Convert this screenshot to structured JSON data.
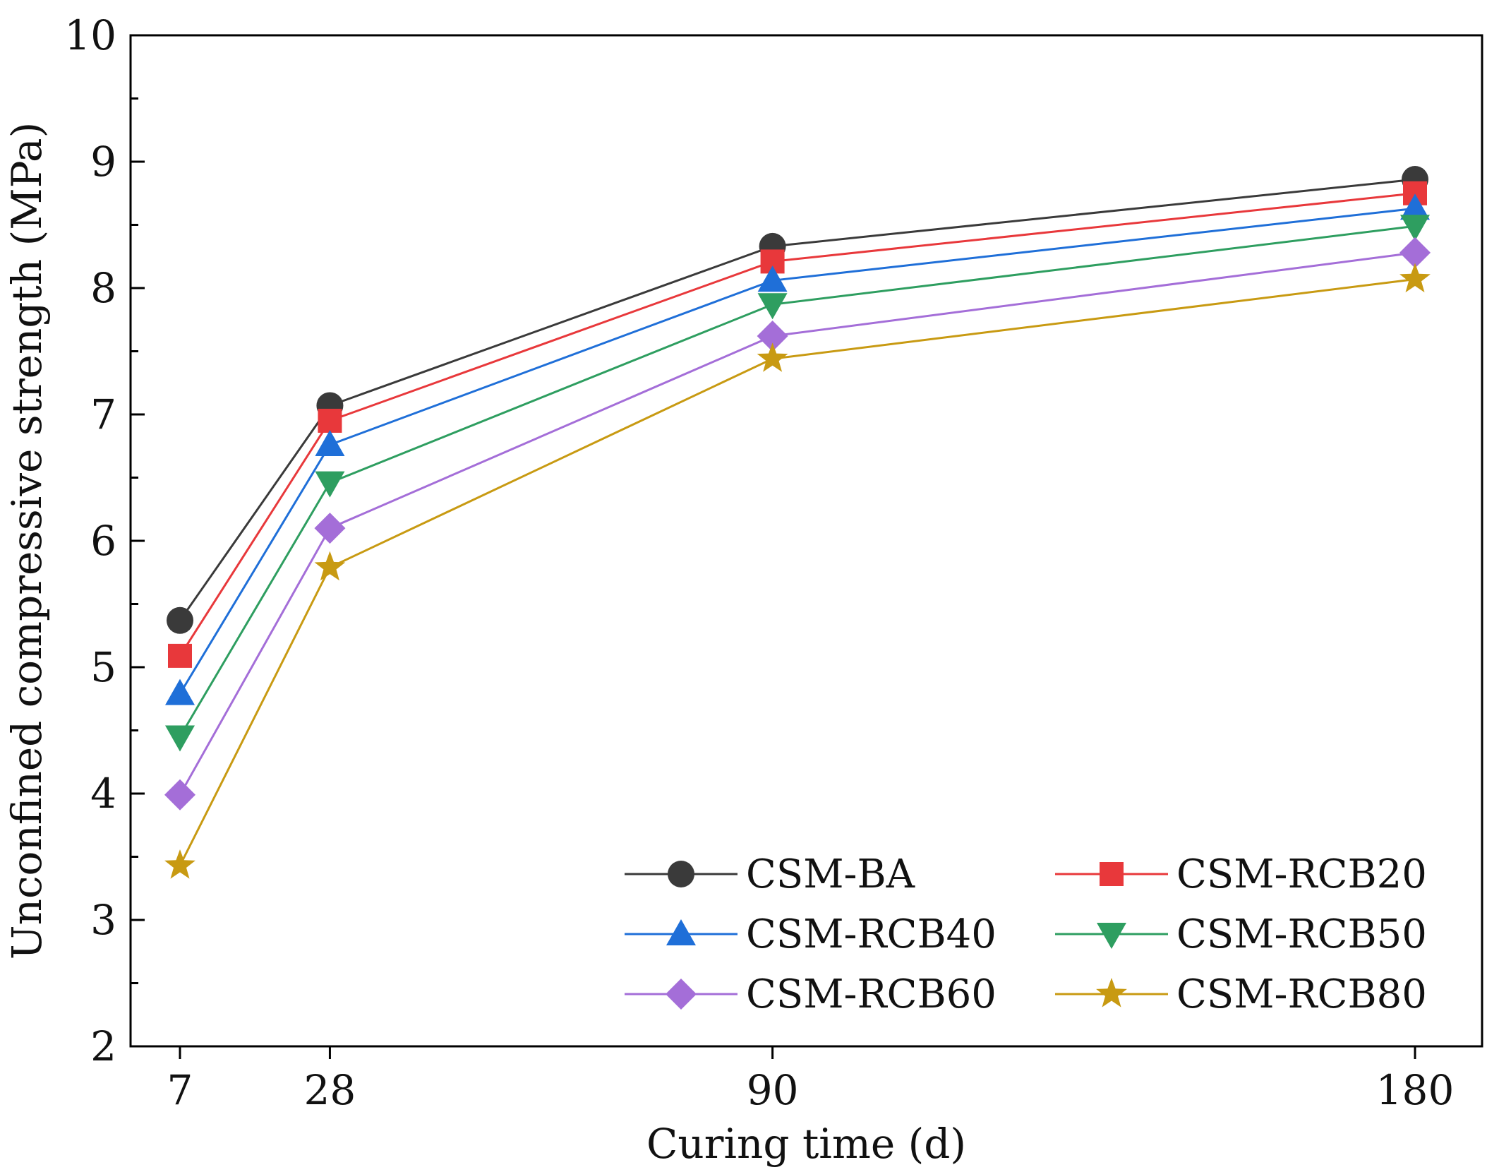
{
  "chart_data": {
    "type": "line",
    "title": "",
    "xlabel": "Curing time (d)",
    "ylabel": "Unconfined compressive strength (MPa)",
    "x": [
      7,
      28,
      90,
      180
    ],
    "x_ticks": [
      "7",
      "28",
      "90",
      "180"
    ],
    "xlim": [
      0,
      190
    ],
    "ylim": [
      2,
      10
    ],
    "y_ticks": [
      "2",
      "3",
      "4",
      "5",
      "6",
      "7",
      "8",
      "9",
      "10"
    ],
    "grid": false,
    "legend_position": "bottom-right",
    "series": [
      {
        "name": "CSM-BA",
        "marker": "circle",
        "color": "#3a3a3a",
        "values": [
          5.37,
          7.07,
          8.33,
          8.86
        ]
      },
      {
        "name": "CSM-RCB20",
        "marker": "square",
        "color": "#e8383b",
        "values": [
          5.09,
          6.95,
          8.21,
          8.75
        ]
      },
      {
        "name": "CSM-RCB40",
        "marker": "triangle-up",
        "color": "#1f6fd8",
        "values": [
          4.79,
          6.76,
          8.06,
          8.63
        ]
      },
      {
        "name": "CSM-RCB50",
        "marker": "triangle-down",
        "color": "#2e9e60",
        "values": [
          4.45,
          6.46,
          7.87,
          8.49
        ]
      },
      {
        "name": "CSM-RCB60",
        "marker": "diamond",
        "color": "#a46ed8",
        "values": [
          3.99,
          6.1,
          7.62,
          8.28
        ]
      },
      {
        "name": "CSM-RCB80",
        "marker": "star",
        "color": "#c89a12",
        "values": [
          3.43,
          5.79,
          7.44,
          8.07
        ]
      }
    ]
  }
}
